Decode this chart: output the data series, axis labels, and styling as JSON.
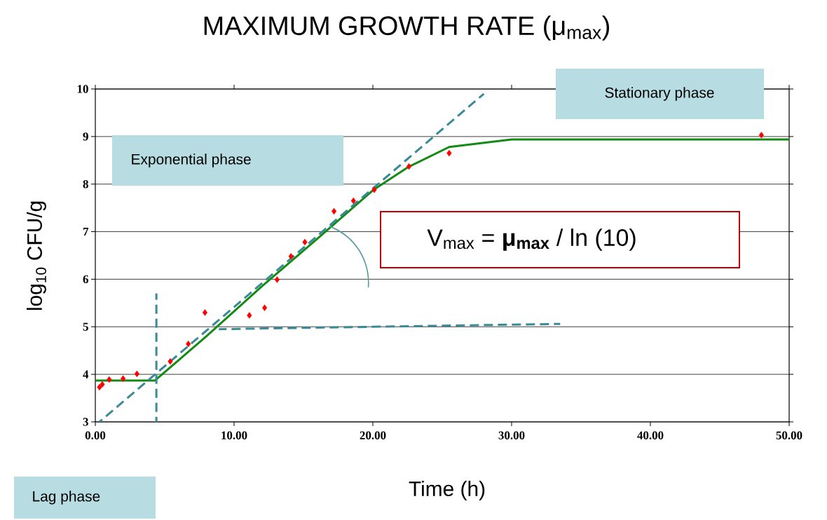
{
  "chart_data": {
    "type": "scatter",
    "title": "MAXIMUM GROWTH RATE (μ$_{max}$)",
    "xlabel": "Time (h)",
    "ylabel": "log$_{10}$ CFU/g",
    "xlim": [
      0,
      50
    ],
    "ylim": [
      3,
      10
    ],
    "xticks": [
      {
        "value": 0,
        "label": "0.00"
      },
      {
        "value": 10,
        "label": "10.00"
      },
      {
        "value": 20,
        "label": "20.00"
      },
      {
        "value": 30,
        "label": "30.00"
      },
      {
        "value": 40,
        "label": "40.00"
      },
      {
        "value": 50,
        "label": "50.00"
      }
    ],
    "yticks": [
      3,
      4,
      5,
      6,
      7,
      8,
      9,
      10
    ],
    "grid": "y",
    "series": [
      {
        "marker": "diamond",
        "color": "#ff0000",
        "x": [
          0.3,
          0.5,
          1.0,
          2.0,
          3.0,
          5.4,
          6.7,
          7.9,
          11.1,
          12.2,
          13.1,
          14.1,
          15.1,
          17.2,
          18.6,
          20.1,
          22.6,
          25.5,
          48.0
        ],
        "values": [
          3.73,
          3.79,
          3.89,
          3.91,
          4.01,
          4.27,
          4.64,
          5.3,
          5.24,
          5.4,
          5.99,
          6.48,
          6.78,
          7.43,
          7.65,
          7.88,
          8.37,
          8.65,
          9.03
        ]
      },
      {
        "type": "line",
        "marker": "none",
        "line_style": "solid",
        "color": "#138a13",
        "x": [
          0,
          4.3,
          8,
          12,
          16,
          20,
          22.5,
          25.5,
          30,
          50
        ],
        "values": [
          3.87,
          3.87,
          4.8,
          5.85,
          6.85,
          7.87,
          8.35,
          8.78,
          8.94,
          8.94
        ]
      },
      {
        "type": "line",
        "marker": "none",
        "line_style": "dashed",
        "color": "#3a8a96",
        "x": [
          0.3,
          28
        ],
        "values": [
          3.0,
          9.9
        ]
      },
      {
        "type": "line",
        "marker": "none",
        "line_style": "dashed",
        "color": "#3a8a96",
        "x": [
          4.4,
          4.4
        ],
        "values": [
          3.0,
          5.7
        ]
      },
      {
        "type": "line",
        "marker": "none",
        "line_style": "dashed",
        "color": "#3a8a96",
        "x": [
          8.9,
          33.5
        ],
        "values": [
          4.95,
          5.06
        ]
      }
    ],
    "annotations": [
      "Stationary phase",
      "Exponential phase",
      "Lag phase",
      "V$_{max}$ = **μ$_{max}$** / ln (10)"
    ]
  }
}
